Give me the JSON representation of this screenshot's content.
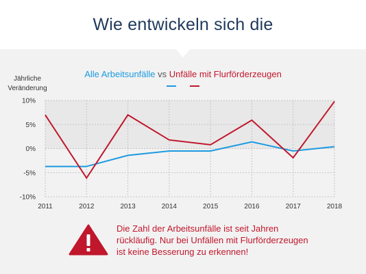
{
  "page": {
    "title": "Wie entwickeln sich die"
  },
  "legend": {
    "series_a": "Alle Arbeitsunfälle",
    "sep": "vs",
    "series_b": "Unfälle mit Flurförderzeugen"
  },
  "notice": {
    "icon": "warning-triangle-icon",
    "lines": [
      "Die Zahl der Arbeitsunfälle ist seit Jahren",
      "rückläufig. Nur bei Unfällen mit Flurförderzeugen",
      "ist keine Besserung zu erkennen!"
    ]
  },
  "colors": {
    "blue": "#1b9ae0",
    "red": "#c0172c",
    "title": "#203a5c",
    "panel": "#f2f2f2",
    "plot_bg": "#e8e8e8"
  },
  "chart_data": {
    "type": "line",
    "x": [
      "2011",
      "2012",
      "2013",
      "2014",
      "2015",
      "2016",
      "2017",
      "2018"
    ],
    "yticks": [
      "10%",
      "5%",
      "0%",
      "-5%",
      "-10%"
    ],
    "ylabel": [
      "Jährliche",
      "Veränderung"
    ],
    "ylim": [
      -10,
      10
    ],
    "grid": true,
    "legend_position": "top-center",
    "series": [
      {
        "name": "Alle Arbeitsunfälle",
        "color": "#1b9ae0",
        "values": [
          -3.7,
          -3.7,
          -1.4,
          -0.5,
          -0.5,
          1.4,
          -0.5,
          0.4
        ]
      },
      {
        "name": "Unfälle mit Flurförderzeugen",
        "color": "#c0172c",
        "values": [
          7.0,
          -6.1,
          7.0,
          1.8,
          0.8,
          5.9,
          -1.9,
          9.8
        ]
      }
    ]
  }
}
